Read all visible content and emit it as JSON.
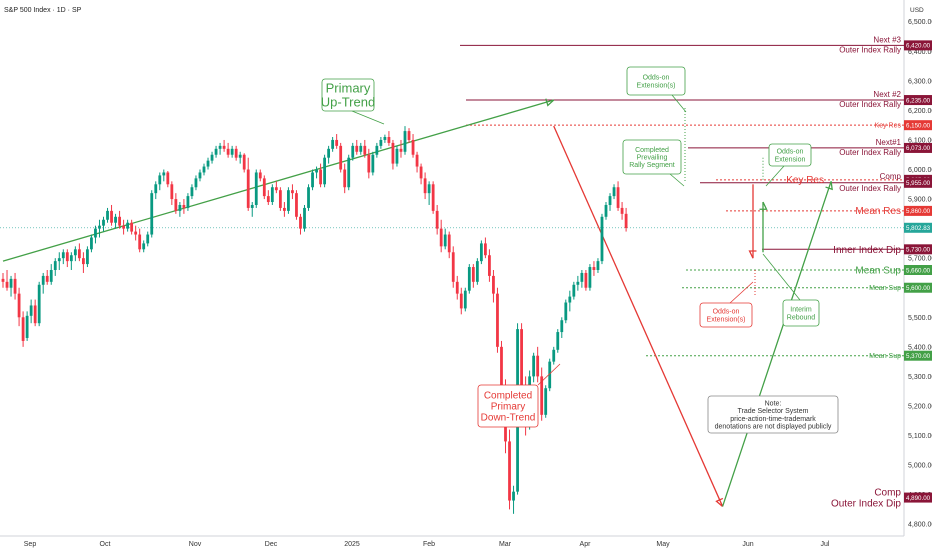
{
  "header": {
    "title": "S&P 500 Index · 1D · SP",
    "currency": "USD"
  },
  "colors": {
    "up": "#089981",
    "down": "#f23645",
    "maroon": "#8a1538",
    "red": "#e53935",
    "green": "#43a047",
    "last": "#26a69a"
  },
  "chart_data": {
    "type": "candlestick",
    "title": "S&P 500 Index · 1D · SP",
    "ylim": [
      4760,
      6560
    ],
    "y_ticks": [
      "6,500.00",
      "6,400.00",
      "6,300.00",
      "6,200.00",
      "6,100.00",
      "6,000.00",
      "5,900.00",
      "5,800.00",
      "5,700.00",
      "5,600.00",
      "5,500.00",
      "5,400.00",
      "5,300.00",
      "5,200.00",
      "5,100.00",
      "5,000.00",
      "4,900.00",
      "4,800.00"
    ],
    "x_ticks": [
      "Sep",
      "Oct",
      "Nov",
      "Dec",
      "2025",
      "Feb",
      "Mar",
      "Apr",
      "May",
      "Jun",
      "Jul"
    ],
    "last_price": "5,802.83",
    "levels": [
      {
        "price": 6420,
        "name": "Next #3",
        "sub": "Outer Index Rally",
        "badge": "6,420.00",
        "style": "maroon"
      },
      {
        "price": 6235,
        "name": "Next #2",
        "sub": "Outer Index Rally",
        "badge": "6,235.00",
        "style": "maroon"
      },
      {
        "price": 6150,
        "name": "Key Res",
        "badge": "6,150.00",
        "style": "red-dashed"
      },
      {
        "price": 6073,
        "name": "Next#1",
        "sub": "Outer Index Rally",
        "badge": "6,073.00",
        "style": "maroon"
      },
      {
        "price": 5965,
        "name": "Comp",
        "badge": "5,965.00",
        "style": "maroon"
      },
      {
        "price": 5955,
        "name": "Outer Index Rally",
        "badge": "5,955.00",
        "style": "maroon"
      },
      {
        "price": 5965,
        "name": "Key Res",
        "style": "red-text"
      },
      {
        "price": 5860,
        "name": "Mean Res",
        "badge": "5,860.00",
        "style": "red-dashed"
      },
      {
        "price": 5730,
        "name": "Inner Index Dip",
        "badge": "5,730.00",
        "style": "maroon"
      },
      {
        "price": 5660,
        "name": "Mean Sup",
        "badge": "5,660.00",
        "style": "green-dashed"
      },
      {
        "price": 5600,
        "name": "Mean Sup",
        "badge": "5,600.00",
        "style": "green-dashed"
      },
      {
        "price": 5370,
        "name": "Mean Sup",
        "badge": "5,370.00",
        "style": "green-dashed"
      },
      {
        "price": 4890,
        "name": "Comp",
        "sub": "Outer Index Dip",
        "badge": "4,890.00",
        "style": "maroon"
      }
    ],
    "ohlc": [
      [
        5630,
        5650,
        5600,
        5620
      ],
      [
        5620,
        5660,
        5590,
        5600
      ],
      [
        5600,
        5640,
        5570,
        5630
      ],
      [
        5630,
        5650,
        5560,
        5580
      ],
      [
        5580,
        5600,
        5470,
        5500
      ],
      [
        5500,
        5520,
        5400,
        5420
      ],
      [
        5430,
        5520,
        5420,
        5505
      ],
      [
        5505,
        5560,
        5480,
        5540
      ],
      [
        5540,
        5560,
        5470,
        5480
      ],
      [
        5480,
        5620,
        5470,
        5610
      ],
      [
        5610,
        5650,
        5580,
        5640
      ],
      [
        5640,
        5660,
        5610,
        5620
      ],
      [
        5620,
        5680,
        5610,
        5660
      ],
      [
        5660,
        5700,
        5640,
        5690
      ],
      [
        5690,
        5720,
        5660,
        5700
      ],
      [
        5700,
        5730,
        5680,
        5720
      ],
      [
        5720,
        5730,
        5670,
        5690
      ],
      [
        5690,
        5720,
        5660,
        5710
      ],
      [
        5710,
        5740,
        5690,
        5730
      ],
      [
        5730,
        5750,
        5690,
        5700
      ],
      [
        5700,
        5720,
        5650,
        5680
      ],
      [
        5680,
        5740,
        5670,
        5730
      ],
      [
        5730,
        5780,
        5720,
        5770
      ],
      [
        5770,
        5810,
        5750,
        5800
      ],
      [
        5800,
        5830,
        5770,
        5810
      ],
      [
        5810,
        5840,
        5790,
        5830
      ],
      [
        5830,
        5870,
        5820,
        5860
      ],
      [
        5860,
        5880,
        5810,
        5820
      ],
      [
        5820,
        5850,
        5800,
        5840
      ],
      [
        5840,
        5860,
        5800,
        5810
      ],
      [
        5810,
        5830,
        5780,
        5800
      ],
      [
        5800,
        5830,
        5790,
        5820
      ],
      [
        5820,
        5830,
        5780,
        5790
      ],
      [
        5790,
        5810,
        5760,
        5780
      ],
      [
        5780,
        5800,
        5720,
        5730
      ],
      [
        5730,
        5760,
        5720,
        5750
      ],
      [
        5750,
        5790,
        5740,
        5780
      ],
      [
        5780,
        5930,
        5770,
        5920
      ],
      [
        5920,
        5960,
        5900,
        5950
      ],
      [
        5950,
        5990,
        5930,
        5980
      ],
      [
        5980,
        6000,
        5960,
        5990
      ],
      [
        5990,
        5995,
        5940,
        5950
      ],
      [
        5950,
        5960,
        5880,
        5900
      ],
      [
        5900,
        5920,
        5850,
        5860
      ],
      [
        5860,
        5890,
        5840,
        5880
      ],
      [
        5880,
        5900,
        5850,
        5870
      ],
      [
        5870,
        5920,
        5860,
        5910
      ],
      [
        5910,
        5950,
        5900,
        5940
      ],
      [
        5940,
        5980,
        5930,
        5970
      ],
      [
        5970,
        6000,
        5960,
        5990
      ],
      [
        5990,
        6020,
        5980,
        6010
      ],
      [
        6010,
        6040,
        6000,
        6030
      ],
      [
        6030,
        6060,
        6020,
        6050
      ],
      [
        6050,
        6080,
        6040,
        6070
      ],
      [
        6070,
        6090,
        6050,
        6080
      ],
      [
        6080,
        6100,
        6060,
        6070
      ],
      [
        6070,
        6090,
        6040,
        6050
      ],
      [
        6050,
        6080,
        6040,
        6070
      ],
      [
        6070,
        6080,
        6030,
        6040
      ],
      [
        6040,
        6060,
        6020,
        6050
      ],
      [
        6050,
        6055,
        5990,
        6000
      ],
      [
        6000,
        6040,
        5860,
        5870
      ],
      [
        5870,
        5890,
        5840,
        5880
      ],
      [
        5880,
        6000,
        5870,
        5990
      ],
      [
        5990,
        6000,
        5960,
        5970
      ],
      [
        5970,
        5980,
        5900,
        5910
      ],
      [
        5910,
        5930,
        5880,
        5890
      ],
      [
        5890,
        5950,
        5880,
        5940
      ],
      [
        5940,
        5960,
        5920,
        5930
      ],
      [
        5930,
        5940,
        5860,
        5870
      ],
      [
        5870,
        5890,
        5840,
        5860
      ],
      [
        5860,
        5940,
        5850,
        5930
      ],
      [
        5930,
        5950,
        5900,
        5920
      ],
      [
        5920,
        5930,
        5830,
        5840
      ],
      [
        5840,
        5850,
        5780,
        5800
      ],
      [
        5800,
        5880,
        5790,
        5870
      ],
      [
        5870,
        5950,
        5860,
        5940
      ],
      [
        5940,
        6000,
        5930,
        5990
      ],
      [
        5990,
        6010,
        5970,
        6000
      ],
      [
        6000,
        6020,
        5940,
        5950
      ],
      [
        5950,
        6050,
        5940,
        6040
      ],
      [
        6040,
        6080,
        6020,
        6070
      ],
      [
        6070,
        6110,
        6060,
        6100
      ],
      [
        6100,
        6120,
        6070,
        6080
      ],
      [
        6080,
        6090,
        5990,
        6000
      ],
      [
        6000,
        6020,
        5920,
        5940
      ],
      [
        5940,
        6050,
        5930,
        6040
      ],
      [
        6040,
        6090,
        6030,
        6080
      ],
      [
        6080,
        6100,
        6050,
        6060
      ],
      [
        6060,
        6090,
        6050,
        6080
      ],
      [
        6080,
        6100,
        6040,
        6050
      ],
      [
        6050,
        6070,
        5970,
        5990
      ],
      [
        5990,
        6060,
        5980,
        6050
      ],
      [
        6050,
        6090,
        6040,
        6080
      ],
      [
        6080,
        6110,
        6070,
        6100
      ],
      [
        6100,
        6118,
        6090,
        6110
      ],
      [
        6110,
        6130,
        6080,
        6090
      ],
      [
        6090,
        6100,
        6000,
        6020
      ],
      [
        6020,
        6080,
        6010,
        6070
      ],
      [
        6070,
        6100,
        6040,
        6060
      ],
      [
        6060,
        6147,
        6050,
        6130
      ],
      [
        6130,
        6140,
        6090,
        6100
      ],
      [
        6100,
        6120,
        6040,
        6050
      ],
      [
        6050,
        6060,
        5990,
        6010
      ],
      [
        6010,
        6020,
        5950,
        5970
      ],
      [
        5970,
        5990,
        5900,
        5920
      ],
      [
        5920,
        5960,
        5880,
        5950
      ],
      [
        5950,
        5960,
        5850,
        5860
      ],
      [
        5860,
        5880,
        5780,
        5800
      ],
      [
        5800,
        5830,
        5720,
        5740
      ],
      [
        5740,
        5800,
        5730,
        5780
      ],
      [
        5780,
        5790,
        5700,
        5720
      ],
      [
        5720,
        5740,
        5600,
        5620
      ],
      [
        5620,
        5640,
        5560,
        5580
      ],
      [
        5580,
        5600,
        5510,
        5530
      ],
      [
        5530,
        5600,
        5520,
        5590
      ],
      [
        5590,
        5680,
        5580,
        5670
      ],
      [
        5670,
        5680,
        5600,
        5620
      ],
      [
        5620,
        5700,
        5610,
        5690
      ],
      [
        5690,
        5760,
        5680,
        5750
      ],
      [
        5750,
        5770,
        5700,
        5710
      ],
      [
        5710,
        5730,
        5620,
        5640
      ],
      [
        5640,
        5660,
        5550,
        5580
      ],
      [
        5580,
        5600,
        5380,
        5400
      ],
      [
        5400,
        5420,
        5250,
        5270
      ],
      [
        5270,
        5290,
        5040,
        5080
      ],
      [
        5080,
        5120,
        4850,
        4880
      ],
      [
        4880,
        4930,
        4835,
        4910
      ],
      [
        4910,
        5480,
        4900,
        5460
      ],
      [
        5460,
        5480,
        5250,
        5270
      ],
      [
        5270,
        5300,
        5100,
        5130
      ],
      [
        5130,
        5320,
        5120,
        5300
      ],
      [
        5300,
        5380,
        5280,
        5370
      ],
      [
        5370,
        5400,
        5280,
        5300
      ],
      [
        5300,
        5330,
        5150,
        5170
      ],
      [
        5170,
        5270,
        5160,
        5260
      ],
      [
        5260,
        5360,
        5250,
        5350
      ],
      [
        5350,
        5400,
        5340,
        5390
      ],
      [
        5390,
        5460,
        5380,
        5450
      ],
      [
        5450,
        5500,
        5430,
        5490
      ],
      [
        5490,
        5560,
        5480,
        5550
      ],
      [
        5550,
        5590,
        5520,
        5570
      ],
      [
        5570,
        5620,
        5560,
        5610
      ],
      [
        5610,
        5640,
        5590,
        5620
      ],
      [
        5620,
        5660,
        5600,
        5650
      ],
      [
        5650,
        5660,
        5590,
        5600
      ],
      [
        5600,
        5680,
        5590,
        5670
      ],
      [
        5670,
        5690,
        5640,
        5660
      ],
      [
        5660,
        5700,
        5650,
        5690
      ],
      [
        5690,
        5850,
        5680,
        5840
      ],
      [
        5840,
        5890,
        5830,
        5880
      ],
      [
        5880,
        5920,
        5860,
        5910
      ],
      [
        5910,
        5950,
        5900,
        5940
      ],
      [
        5940,
        5960,
        5860,
        5870
      ],
      [
        5870,
        5890,
        5830,
        5850
      ],
      [
        5850,
        5870,
        5790,
        5802
      ]
    ],
    "trend_lines": [
      {
        "name": "primary-up-trend",
        "from": [
          0,
          5690
        ],
        "to": [
          137,
          6235
        ],
        "color": "green"
      },
      {
        "name": "completed-primary-down-trend",
        "from": [
          137,
          6147
        ],
        "to": [
          179,
          4860
        ],
        "color": "red"
      },
      {
        "name": "rally-segment",
        "from": [
          179,
          4860
        ],
        "to": [
          206,
          5960
        ],
        "color": "green"
      }
    ],
    "annotations": [
      {
        "text": "Primary\nUp-Trend",
        "color": "green",
        "size": 13
      },
      {
        "text": "Completed\nPrimary\nDown-Trend",
        "color": "red",
        "size": 10
      },
      {
        "text": "Odds-on\nExtension(s)",
        "color": "green",
        "size": 7
      },
      {
        "text": "Completed\nPrevailing\nRally Segment",
        "color": "green",
        "size": 7
      },
      {
        "text": "Odds-on\nExtension",
        "color": "green",
        "size": 7
      },
      {
        "text": "Odds-on\nExtension(s)",
        "color": "red",
        "size": 7
      },
      {
        "text": "Interim\nRebound",
        "color": "green",
        "size": 7
      },
      {
        "text": "Note:\nTrade Selector System\nprice-action-time-trademark\ndenotations are not displayed publicly",
        "color": "gray",
        "size": 7
      }
    ]
  }
}
